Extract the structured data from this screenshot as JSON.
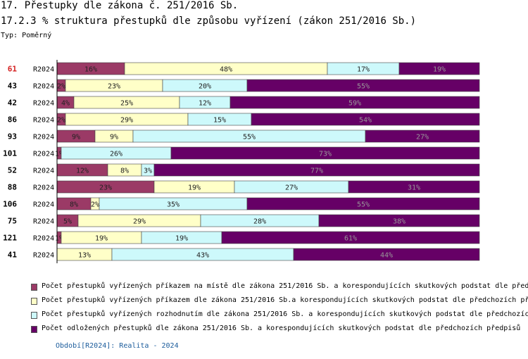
{
  "header": {
    "title": "17. Přestupky dle zákona č. 251/2016 Sb.",
    "subtitle": "17.2.3 % struktura přestupků dle způsobu vyřízení (zákon 251/2016 Sb.)",
    "type_label": "Typ: Poměrný"
  },
  "colors": {
    "series": [
      "#9b3a66",
      "#ffffc8",
      "#cdf9fb",
      "#660066"
    ],
    "highlight_region": "#d42020"
  },
  "chart_data": {
    "type": "bar",
    "orientation": "horizontal",
    "stacked": true,
    "percent": true,
    "categories": [
      "61",
      "43",
      "42",
      "86",
      "93",
      "101",
      "52",
      "88",
      "106",
      "75",
      "121",
      "41"
    ],
    "period_labels": [
      "R2024",
      "R2024",
      "R2024",
      "R2024",
      "R2024",
      "R2024",
      "R2024",
      "R2024",
      "R2024",
      "R2024",
      "R2024",
      "R2024"
    ],
    "highlighted_category": "61",
    "series": [
      {
        "name": "Počet přestupků vyřízených příkazem na místě dle zákona 251/2016 Sb. a korespondujících skutkových podstat dle před",
        "values": [
          16,
          2,
          4,
          2,
          9,
          1,
          12,
          23,
          8,
          5,
          1,
          0
        ]
      },
      {
        "name": "Počet přestupků vyřízených příkazem dle zákona 251/2016 Sb.a korespondujících skutkových podstat dle předchozích př",
        "values": [
          48,
          23,
          25,
          29,
          9,
          0,
          8,
          19,
          2,
          29,
          19,
          13
        ]
      },
      {
        "name": "Počet přestupků vyřízených rozhodnutím dle zákona 251/2016 Sb. a korespondujících skutkových podstat dle předchozíc",
        "values": [
          17,
          20,
          12,
          15,
          55,
          26,
          3,
          27,
          35,
          28,
          19,
          43
        ]
      },
      {
        "name": "Počet odložených přestupků dle zákona 251/2016 Sb. a korespondujících skutkových podstat dle předchozích předpisů",
        "values": [
          19,
          55,
          59,
          54,
          27,
          73,
          77,
          31,
          55,
          38,
          61,
          44
        ]
      }
    ],
    "data_labels": [
      [
        "16%",
        "48%",
        "17%",
        "19%"
      ],
      [
        "2%",
        "23%",
        "20%",
        "55%"
      ],
      [
        "4%",
        "25%",
        "12%",
        "59%"
      ],
      [
        "2%",
        "29%",
        "15%",
        "54%"
      ],
      [
        "9%",
        "9%",
        "55%",
        "27%"
      ],
      [
        "1%",
        "",
        "26%",
        "73%"
      ],
      [
        "12%",
        "8%",
        "3%",
        "77%"
      ],
      [
        "23%",
        "19%",
        "27%",
        "31%"
      ],
      [
        "8%",
        "2%",
        "35%",
        "55%"
      ],
      [
        "5%",
        "29%",
        "28%",
        "38%"
      ],
      [
        "1%",
        "19%",
        "19%",
        "61%"
      ],
      [
        "",
        "13%",
        "43%",
        "44%"
      ]
    ],
    "xlim": [
      0,
      100
    ]
  },
  "legend": {
    "items": [
      "Počet přestupků vyřízených příkazem na místě dle zákona 251/2016 Sb. a korespondujících skutkových podstat dle před",
      "Počet přestupků vyřízených příkazem dle zákona 251/2016 Sb.a korespondujících skutkových podstat dle předchozích př",
      "Počet přestupků vyřízených rozhodnutím dle zákona 251/2016 Sb. a korespondujících skutkových podstat dle předchozíc",
      "Počet odložených přestupků dle zákona 251/2016 Sb. a korespondujících skutkových podstat dle předchozích předpisů"
    ]
  },
  "footer": {
    "text": "Období[R2024]: Realita - 2024"
  }
}
